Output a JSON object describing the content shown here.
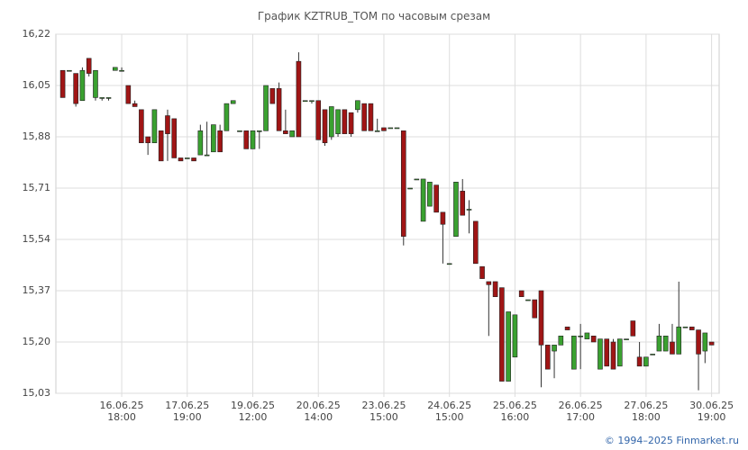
{
  "chart_data": {
    "type": "candlestick",
    "title": "График KZTRUB_TOM по часовым срезам",
    "source": "© 1994–2025 Finmarket.ru",
    "up_color": "#3aa130",
    "down_color": "#a01515",
    "grid": true,
    "ylim": [
      15.03,
      16.22
    ],
    "yticks": [
      {
        "value": 15.03,
        "label": "15,03"
      },
      {
        "value": 15.2,
        "label": "15,20"
      },
      {
        "value": 15.37,
        "label": "15,37"
      },
      {
        "value": 15.54,
        "label": "15,54"
      },
      {
        "value": 15.71,
        "label": "15,71"
      },
      {
        "value": 15.88,
        "label": "15,88"
      },
      {
        "value": 16.05,
        "label": "16,05"
      },
      {
        "value": 16.22,
        "label": "16,22"
      }
    ],
    "categories": [
      null,
      null,
      null,
      null,
      null,
      null,
      null,
      null,
      null,
      "16.06.25 18:00",
      null,
      null,
      null,
      null,
      null,
      null,
      null,
      null,
      null,
      "17.06.25 19:00",
      null,
      null,
      null,
      null,
      null,
      null,
      null,
      null,
      null,
      "19.06.25 12:00",
      null,
      null,
      null,
      null,
      null,
      null,
      null,
      null,
      null,
      "20.06.25 14:00",
      null,
      null,
      null,
      null,
      null,
      null,
      null,
      null,
      null,
      "23.06.25 15:00",
      null,
      null,
      null,
      null,
      null,
      null,
      null,
      null,
      null,
      "24.06.25 15:00",
      null,
      null,
      null,
      null,
      null,
      null,
      null,
      null,
      null,
      "25.06.25 16:00",
      null,
      null,
      null,
      null,
      null,
      null,
      null,
      null,
      null,
      "26.06.25 17:00",
      null,
      null,
      null,
      null,
      null,
      null,
      null,
      null,
      null,
      "27.06.25 18:00",
      null,
      null,
      null,
      null,
      null,
      null,
      null,
      null,
      null,
      "30.06.25 19:00"
    ],
    "open": [
      16.1,
      16.1,
      16.09,
      16.0,
      16.14,
      16.01,
      16.01,
      16.01,
      16.1,
      16.1,
      16.05,
      15.99,
      15.97,
      15.88,
      15.86,
      15.9,
      15.95,
      15.94,
      15.81,
      15.81,
      15.81,
      15.82,
      15.82,
      15.83,
      15.9,
      15.9,
      15.99,
      15.9,
      15.9,
      15.84,
      15.9,
      15.9,
      16.04,
      16.04,
      15.9,
      15.88,
      16.13,
      16.0,
      16.0,
      16.0,
      15.97,
      15.88,
      15.89,
      15.97,
      15.96,
      15.97,
      15.99,
      15.99,
      15.9,
      15.91,
      15.91,
      15.91,
      15.9,
      15.71,
      15.74,
      15.6,
      15.65,
      15.72,
      15.63,
      15.46,
      15.55,
      15.7,
      15.64,
      15.6,
      15.45,
      15.4,
      15.4,
      15.38,
      15.07,
      15.15,
      15.37,
      15.34,
      15.34,
      15.37,
      15.19,
      15.17,
      15.19,
      15.25,
      15.11,
      15.22,
      15.21,
      15.22,
      15.11,
      15.21,
      15.2,
      15.12,
      15.21,
      15.27,
      15.15,
      15.12,
      15.16,
      15.17,
      15.17,
      15.2,
      15.16,
      15.25,
      15.25,
      15.24,
      15.17,
      15.2
    ],
    "high": [
      16.1,
      16.1,
      16.09,
      16.11,
      16.14,
      16.1,
      16.01,
      16.01,
      16.11,
      16.11,
      16.05,
      16.0,
      15.97,
      15.88,
      15.97,
      15.9,
      15.97,
      15.94,
      15.81,
      15.81,
      15.81,
      15.92,
      15.93,
      15.92,
      15.92,
      15.99,
      16.0,
      15.9,
      15.9,
      15.9,
      15.9,
      16.05,
      16.04,
      16.06,
      15.97,
      15.9,
      16.16,
      16.0,
      16.0,
      16.0,
      15.97,
      15.98,
      15.97,
      15.97,
      15.96,
      16.0,
      15.99,
      15.99,
      15.94,
      15.91,
      15.91,
      15.91,
      15.9,
      15.71,
      15.74,
      15.74,
      15.73,
      15.72,
      15.63,
      15.46,
      15.73,
      15.74,
      15.67,
      15.6,
      15.45,
      15.4,
      15.4,
      15.38,
      15.3,
      15.29,
      15.37,
      15.34,
      15.34,
      15.37,
      15.19,
      15.19,
      15.22,
      15.25,
      15.22,
      15.26,
      15.23,
      15.22,
      15.21,
      15.21,
      15.21,
      15.21,
      15.21,
      15.27,
      15.2,
      15.15,
      15.16,
      15.26,
      15.22,
      15.26,
      15.4,
      15.25,
      15.25,
      15.24,
      15.23,
      15.2
    ],
    "low": [
      16.01,
      16.1,
      15.98,
      16.0,
      16.08,
      16.0,
      16.0,
      16.0,
      16.1,
      16.1,
      15.99,
      15.98,
      15.86,
      15.82,
      15.86,
      15.8,
      15.8,
      15.81,
      15.8,
      15.81,
      15.8,
      15.82,
      15.82,
      15.83,
      15.83,
      15.9,
      15.99,
      15.9,
      15.84,
      15.84,
      15.84,
      15.9,
      15.99,
      15.9,
      15.89,
      15.88,
      15.88,
      16.0,
      15.99,
      15.87,
      15.85,
      15.87,
      15.88,
      15.89,
      15.88,
      15.96,
      15.9,
      15.9,
      15.9,
      15.9,
      15.91,
      15.91,
      15.52,
      15.71,
      15.74,
      15.6,
      15.65,
      15.63,
      15.46,
      15.46,
      15.55,
      15.62,
      15.56,
      15.46,
      15.41,
      15.22,
      15.35,
      15.07,
      15.07,
      15.15,
      15.35,
      15.34,
      15.28,
      15.05,
      15.11,
      15.08,
      15.19,
      15.24,
      15.11,
      15.11,
      15.21,
      15.2,
      15.11,
      15.12,
      15.11,
      15.12,
      15.21,
      15.22,
      15.12,
      15.12,
      15.16,
      15.17,
      15.17,
      15.16,
      15.16,
      15.25,
      15.24,
      15.04,
      15.13,
      15.19
    ],
    "close": [
      16.01,
      16.1,
      15.99,
      16.1,
      16.09,
      16.1,
      16.01,
      16.01,
      16.11,
      16.1,
      15.99,
      15.98,
      15.86,
      15.86,
      15.97,
      15.8,
      15.89,
      15.81,
      15.8,
      15.81,
      15.8,
      15.9,
      15.82,
      15.92,
      15.83,
      15.99,
      16.0,
      15.9,
      15.84,
      15.9,
      15.9,
      16.05,
      15.99,
      15.9,
      15.89,
      15.9,
      15.88,
      16.0,
      16.0,
      15.87,
      15.86,
      15.98,
      15.97,
      15.89,
      15.89,
      16.0,
      15.9,
      15.9,
      15.9,
      15.9,
      15.91,
      15.91,
      15.55,
      15.71,
      15.74,
      15.74,
      15.73,
      15.63,
      15.59,
      15.46,
      15.73,
      15.62,
      15.64,
      15.46,
      15.41,
      15.39,
      15.35,
      15.07,
      15.3,
      15.29,
      15.35,
      15.34,
      15.28,
      15.19,
      15.11,
      15.19,
      15.22,
      15.24,
      15.22,
      15.22,
      15.23,
      15.2,
      15.21,
      15.12,
      15.11,
      15.21,
      15.21,
      15.22,
      15.12,
      15.15,
      15.16,
      15.22,
      15.22,
      15.16,
      15.25,
      15.25,
      15.24,
      15.16,
      15.23,
      15.19
    ]
  }
}
